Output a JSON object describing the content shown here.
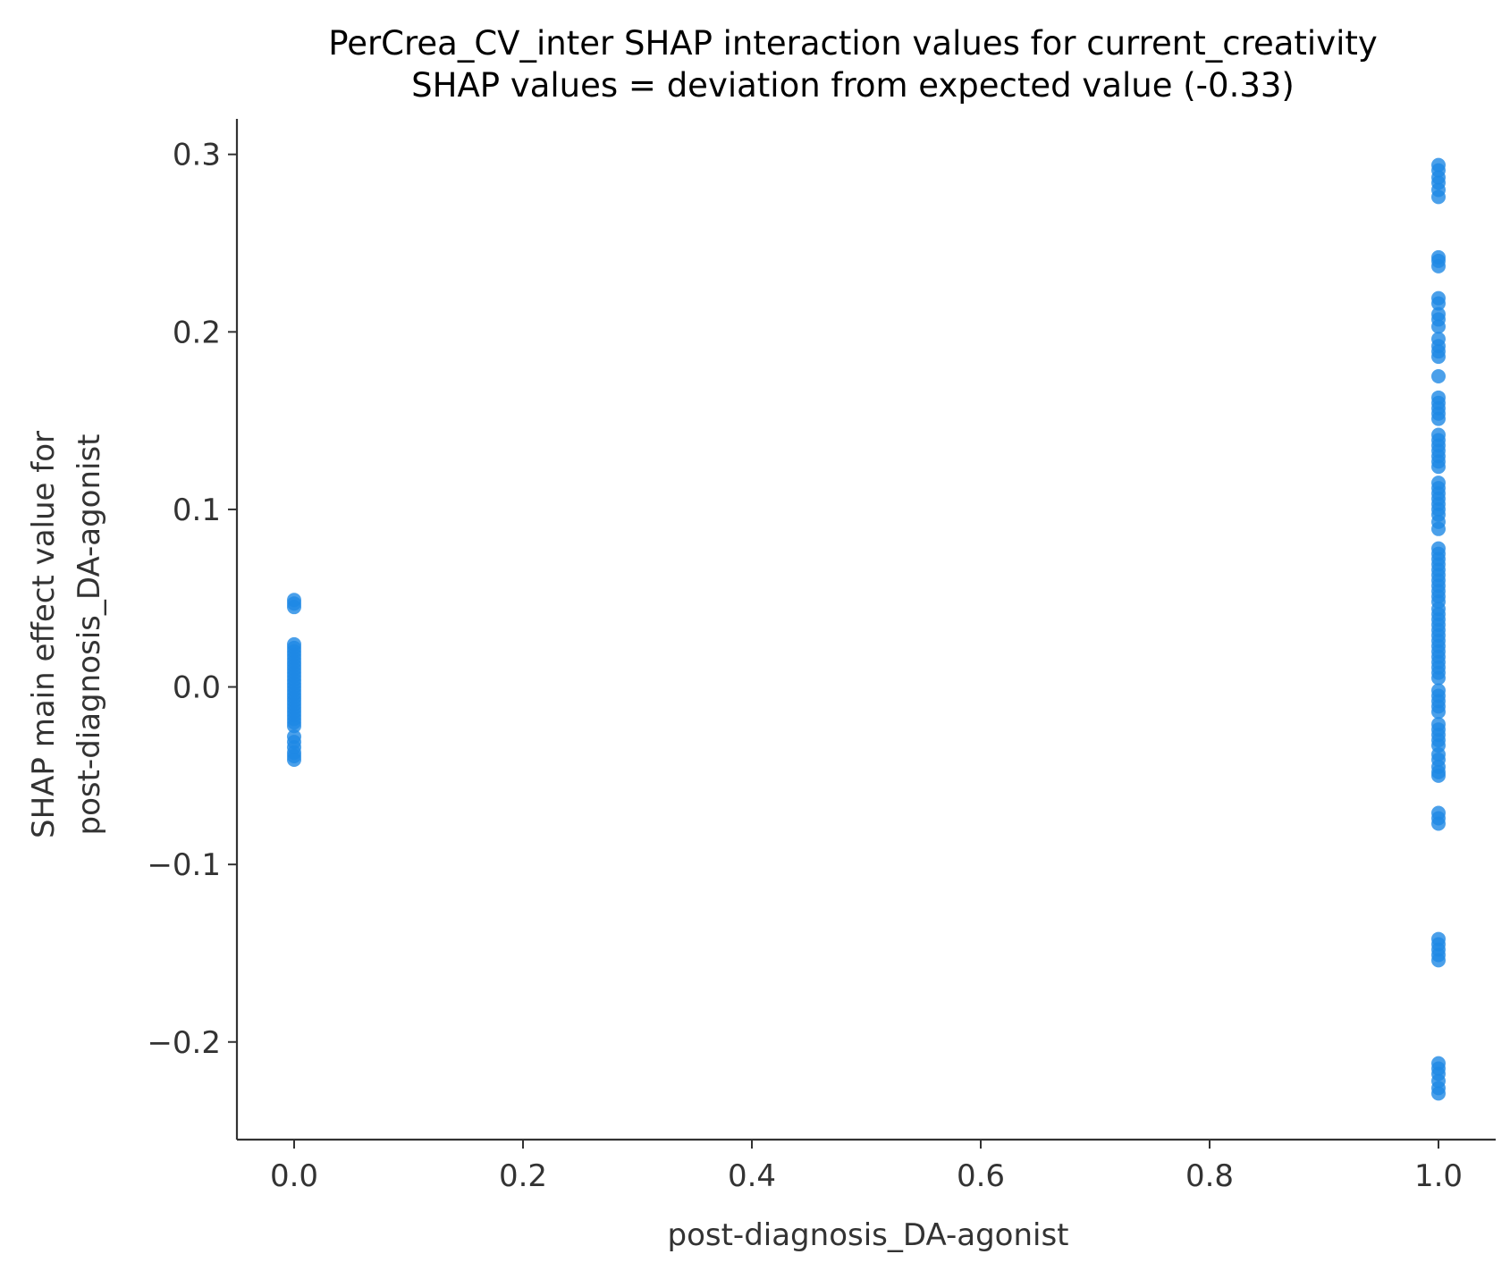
{
  "chart_data": {
    "type": "scatter",
    "title": "PerCrea_CV_inter SHAP interaction values for current_creativity",
    "subtitle": "SHAP values = deviation from expected value (-0.33)",
    "xlabel": "post-diagnosis_DA-agonist",
    "ylabel_line1": "SHAP main effect value for",
    "ylabel_line2": "post-diagnosis_DA-agonist",
    "xlim": [
      -0.05,
      1.05
    ],
    "ylim": [
      -0.255,
      0.32
    ],
    "xticks": [
      0.0,
      0.2,
      0.4,
      0.6,
      0.8,
      1.0
    ],
    "xtick_labels": [
      "0.0",
      "0.2",
      "0.4",
      "0.6",
      "0.8",
      "1.0"
    ],
    "yticks": [
      -0.2,
      -0.1,
      0.0,
      0.1,
      0.2,
      0.3
    ],
    "ytick_labels": [
      "−0.2",
      "−0.1",
      "0.0",
      "0.1",
      "0.2",
      "0.3"
    ],
    "grid": false,
    "point_color": "#1E88E5",
    "series": [
      {
        "x": 0.0,
        "y": [
          0.049,
          0.047,
          0.045,
          0.024,
          0.022,
          0.02,
          0.018,
          0.016,
          0.014,
          0.012,
          0.01,
          0.008,
          0.006,
          0.004,
          0.002,
          0.0,
          -0.002,
          -0.004,
          -0.006,
          -0.008,
          -0.01,
          -0.012,
          -0.014,
          -0.016,
          -0.018,
          -0.02,
          -0.022,
          -0.028,
          -0.031,
          -0.034,
          -0.037,
          -0.039,
          -0.041
        ]
      },
      {
        "x": 1.0,
        "y": [
          0.294,
          0.291,
          0.287,
          0.284,
          0.28,
          0.276,
          0.242,
          0.24,
          0.237,
          0.219,
          0.216,
          0.21,
          0.207,
          0.203,
          0.196,
          0.192,
          0.189,
          0.186,
          0.175,
          0.163,
          0.16,
          0.157,
          0.154,
          0.151,
          0.142,
          0.139,
          0.136,
          0.133,
          0.13,
          0.127,
          0.124,
          0.115,
          0.112,
          0.109,
          0.106,
          0.103,
          0.1,
          0.097,
          0.093,
          0.089,
          0.078,
          0.075,
          0.072,
          0.069,
          0.066,
          0.063,
          0.06,
          0.057,
          0.054,
          0.051,
          0.048,
          0.044,
          0.041,
          0.038,
          0.035,
          0.032,
          0.029,
          0.026,
          0.023,
          0.02,
          0.017,
          0.014,
          0.011,
          0.008,
          0.005,
          -0.002,
          -0.005,
          -0.008,
          -0.011,
          -0.014,
          -0.021,
          -0.024,
          -0.027,
          -0.03,
          -0.033,
          -0.038,
          -0.041,
          -0.045,
          -0.048,
          -0.05,
          -0.071,
          -0.074,
          -0.077,
          -0.142,
          -0.145,
          -0.148,
          -0.151,
          -0.154,
          -0.212,
          -0.215,
          -0.218,
          -0.222,
          -0.226,
          -0.229
        ]
      }
    ]
  }
}
